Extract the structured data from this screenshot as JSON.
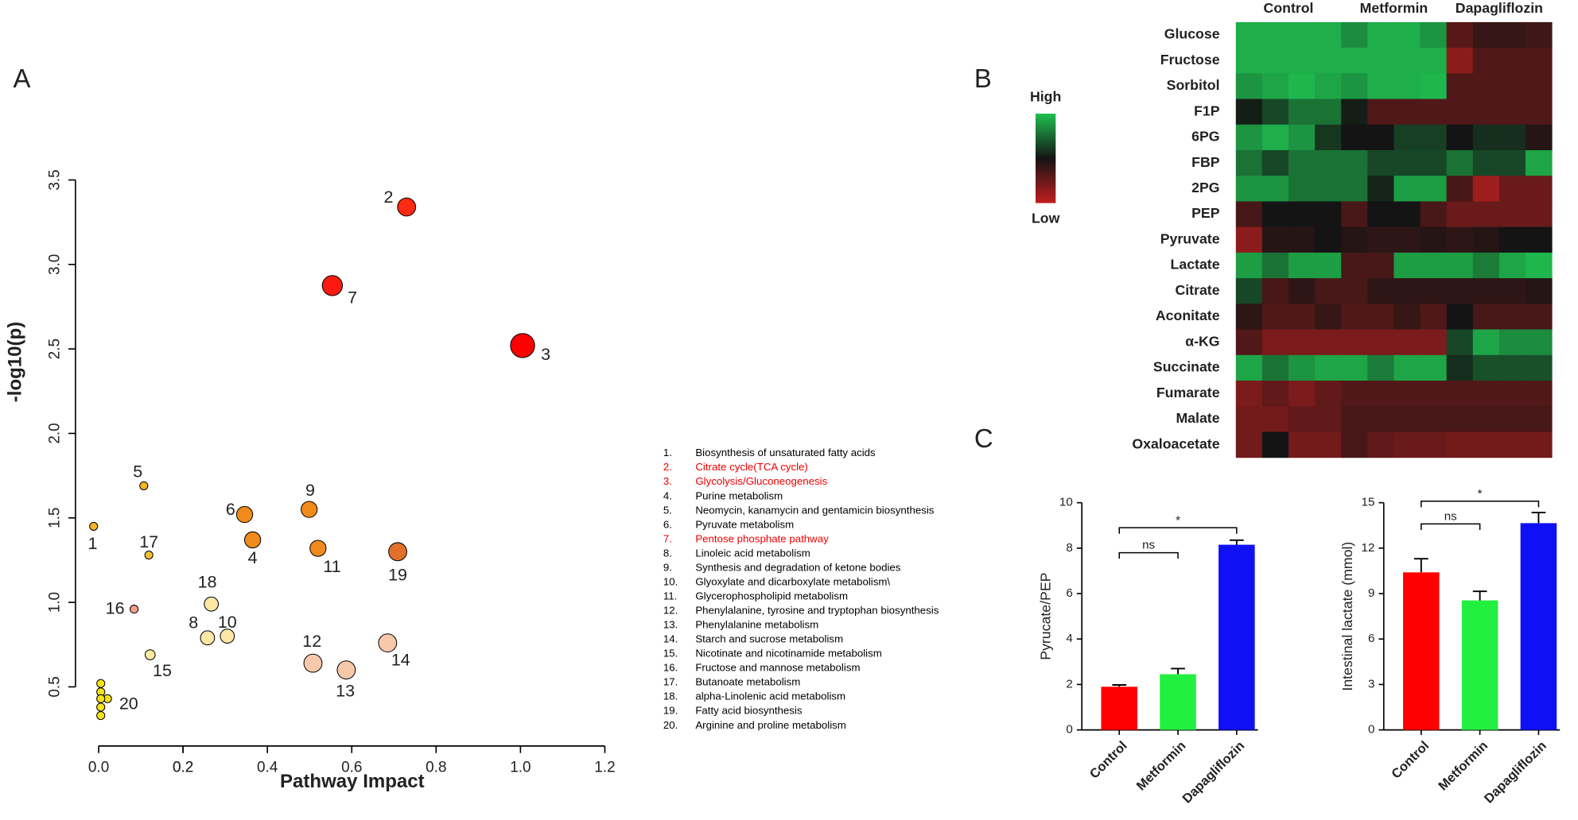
{
  "chart_data": [
    {
      "type": "scatter",
      "panel": "A",
      "xlabel": "Pathway Impact",
      "ylabel": "-log10(p)",
      "xlim": [
        -0.055,
        1.2
      ],
      "ylim": [
        0.15,
        3.5
      ],
      "xticks": [
        {
          "value": 0,
          "label": "0.0"
        },
        0.2,
        0.4,
        0.6,
        0.8,
        {
          "value": 1,
          "label": "1.0"
        },
        0.2,
        1.2
      ],
      "yticks": [
        0.5,
        {
          "value": 1,
          "label": "1.0"
        },
        1.5,
        {
          "value": 2,
          "label": "2.0"
        },
        2.5,
        {
          "value": 3,
          "label": "3.0"
        },
        3.5
      ],
      "labels": [
        "1",
        "2",
        "3",
        "4",
        "5",
        "6",
        "7",
        "8",
        "9",
        "10",
        "11",
        "12",
        "13",
        "14",
        "15",
        "16",
        "17",
        "18",
        "19",
        "20",
        null,
        null,
        null,
        null,
        null
      ],
      "x": [
        -0.012,
        0.73,
        1.005,
        0.365,
        0.107,
        0.346,
        0.554,
        0.258,
        0.499,
        0.305,
        0.52,
        0.508,
        0.587,
        0.685,
        0.122,
        0.084,
        0.119,
        0.267,
        0.709,
        0.021,
        0.005,
        0.005,
        0.005,
        0.005,
        0.005
      ],
      "y": [
        1.45,
        3.34,
        2.52,
        1.37,
        1.69,
        1.52,
        2.875,
        0.79,
        1.55,
        0.8,
        1.32,
        0.64,
        0.6,
        0.76,
        0.69,
        0.96,
        1.28,
        0.99,
        1.3,
        0.43,
        0.52,
        0.47,
        0.43,
        0.38,
        0.33
      ],
      "sizes": [
        4,
        9,
        12,
        8,
        4,
        8,
        10,
        7,
        8,
        7,
        8,
        9,
        9,
        9,
        5,
        4,
        4,
        7,
        9,
        4,
        4,
        4,
        4,
        4,
        4
      ],
      "colors": [
        "#f5b525",
        "#fb2a10",
        "#ff0000",
        "#f08a1a",
        "#f5b525",
        "#f08a1a",
        "#fb1a10",
        "#fde7a6",
        "#f08a1a",
        "#fde7a6",
        "#f08a1a",
        "#f8c8aa",
        "#f8c8aa",
        "#f8c8aa",
        "#fdeba0",
        "#f4a08a",
        "#f5c030",
        "#fde7a6",
        "#e2702a",
        "#f7e21a",
        "#f7e21a",
        "#f7e21a",
        "#f7e21a",
        "#f7e21a",
        "#f7e21a"
      ],
      "pathway_numbers": [
        "1.",
        "2.",
        "3.",
        "4.",
        "5.",
        "6.",
        "7.",
        "8.",
        "9.",
        "10.",
        "11.",
        "12.",
        "13.",
        "14.",
        "15.",
        "16.",
        "17.",
        "18.",
        "19.",
        "20."
      ],
      "pathway_names": [
        "Biosynthesis of unsaturated fatty acids",
        "Citrate cycle(TCA cycle)",
        "Glycolysis/Gluconeogenesis",
        "Purine metabolism",
        "Neomycin, kanamycin and gentamicin biosynthesis",
        "Pyruvate metabolism",
        "Pentose phosphate pathway",
        "Linoleic acid metabolism",
        "Synthesis and degradation of ketone bodies",
        "Glyoxylate and dicarboxylate metabolism\\",
        "Glycerophospholipid metabolism",
        "Phenylalanine, tyrosine and tryptophan biosynthesis",
        "Phenylalanine metabolism",
        "Starch and sucrose metabolism",
        "Nicotinate and nicotinamide metabolism",
        "Fructose and mannose metabolism",
        "Butanoate metabolism",
        "alpha-Linolenic acid metabolism",
        "Fatty acid biosynthesis",
        "Arginine and proline metabolism"
      ],
      "pathway_colors": [
        "#000",
        "#e00",
        "#e00",
        "#000",
        "#000",
        "#000",
        "#e00",
        "#000",
        "#000",
        "#000",
        "#000",
        "#000",
        "#000",
        "#000",
        "#000",
        "#000",
        "#000",
        "#000",
        "#000",
        "#000"
      ]
    },
    {
      "type": "heatmap",
      "panel": "B",
      "legend_high": "High",
      "legend_low": "Low",
      "colors": {
        "low": "#c01f1f",
        "mid": "#141414",
        "high": "#1fbf50"
      },
      "clim": [
        -1,
        1
      ],
      "groups": [
        "Control",
        "Metformin",
        "Dapagliflozin"
      ],
      "rows": [
        "Glucose",
        "Fructose",
        "Sorbitol",
        "F1P",
        "6PG",
        "FBP",
        "2PG",
        "PEP",
        "Pyruvate",
        "Lactate",
        "Citrate",
        "Aconitate",
        "α-KG",
        "Succinate",
        "Fumarate",
        "Malate",
        "Oxaloacetate"
      ],
      "values": [
        [
          [
            0.9,
            0.9,
            0.9,
            0.9
          ],
          [
            0.7,
            0.9,
            0.9,
            0.75
          ],
          [
            -0.4,
            -0.2,
            -0.2,
            -0.25
          ]
        ],
        [
          [
            0.9,
            0.9,
            0.9,
            0.9
          ],
          [
            0.9,
            0.9,
            0.9,
            0.9
          ],
          [
            -0.7,
            -0.35,
            -0.35,
            -0.35
          ]
        ],
        [
          [
            0.75,
            0.85,
            0.95,
            0.85
          ],
          [
            0.75,
            0.9,
            0.9,
            0.95
          ],
          [
            -0.35,
            -0.35,
            -0.35,
            -0.35
          ]
        ],
        [
          [
            0.05,
            0.3,
            0.55,
            0.55
          ],
          [
            0.05,
            -0.35,
            -0.35,
            -0.35
          ],
          [
            -0.35,
            -0.35,
            -0.35,
            -0.35
          ]
        ],
        [
          [
            0.75,
            0.9,
            0.75,
            0.2
          ],
          [
            0,
            0,
            0.25,
            0.25
          ],
          [
            0,
            0.15,
            0.15,
            -0.1
          ]
        ],
        [
          [
            0.55,
            0.3,
            0.55,
            0.55
          ],
          [
            0.55,
            0.3,
            0.3,
            0.3
          ],
          [
            0.55,
            0.3,
            0.3,
            0.85
          ]
        ],
        [
          [
            0.75,
            0.75,
            0.55,
            0.55
          ],
          [
            0.55,
            0.1,
            0.8,
            0.8
          ],
          [
            -0.3,
            -0.8,
            -0.5,
            -0.5
          ]
        ],
        [
          [
            -0.3,
            0,
            0,
            0
          ],
          [
            -0.3,
            0,
            0,
            -0.3
          ],
          [
            -0.5,
            -0.5,
            -0.5,
            -0.5
          ]
        ],
        [
          [
            -0.7,
            -0.1,
            -0.1,
            0
          ],
          [
            -0.1,
            -0.15,
            -0.15,
            -0.1
          ],
          [
            -0.15,
            -0.1,
            0,
            0
          ]
        ],
        [
          [
            0.8,
            0.55,
            0.8,
            0.8
          ],
          [
            -0.3,
            -0.3,
            0.8,
            0.8
          ],
          [
            0.8,
            0.6,
            0.85,
            0.95
          ]
        ],
        [
          [
            0.3,
            -0.3,
            -0.15,
            -0.3
          ],
          [
            -0.3,
            -0.15,
            -0.15,
            -0.15
          ],
          [
            -0.15,
            -0.15,
            -0.15,
            -0.1
          ]
        ],
        [
          [
            -0.15,
            -0.35,
            -0.35,
            -0.2
          ],
          [
            -0.35,
            -0.35,
            -0.2,
            -0.35
          ],
          [
            0,
            -0.3,
            -0.3,
            -0.3
          ]
        ],
        [
          [
            -0.35,
            -0.6,
            -0.6,
            -0.6
          ],
          [
            -0.6,
            -0.6,
            -0.6,
            -0.6
          ],
          [
            0.3,
            0.85,
            0.7,
            0.7
          ]
        ],
        [
          [
            0.85,
            0.55,
            0.75,
            0.85
          ],
          [
            0.85,
            0.6,
            0.85,
            0.85
          ],
          [
            0.15,
            0.35,
            0.35,
            0.35
          ]
        ],
        [
          [
            -0.6,
            -0.45,
            -0.6,
            -0.45
          ],
          [
            -0.35,
            -0.35,
            -0.35,
            -0.35
          ],
          [
            -0.35,
            -0.35,
            -0.35,
            -0.35
          ]
        ],
        [
          [
            -0.55,
            -0.55,
            -0.45,
            -0.45
          ],
          [
            -0.3,
            -0.3,
            -0.3,
            -0.3
          ],
          [
            -0.3,
            -0.3,
            -0.3,
            -0.3
          ]
        ],
        [
          [
            -0.55,
            0,
            -0.55,
            -0.55
          ],
          [
            -0.3,
            -0.45,
            -0.5,
            -0.5
          ],
          [
            -0.55,
            -0.55,
            -0.55,
            -0.55
          ]
        ]
      ]
    },
    {
      "type": "bar",
      "panel": "C",
      "ylabel": "Pyrucate/PEP",
      "categories": [
        "Control",
        "Metformin",
        "Dapagliflozin"
      ],
      "values": [
        1.9,
        2.45,
        8.15
      ],
      "errors": [
        0.08,
        0.25,
        0.2
      ],
      "colors": [
        "#ff0000",
        "#22f040",
        "#1010f5"
      ],
      "ylim": [
        0,
        10
      ],
      "yticks": [
        0,
        2,
        4,
        6,
        8,
        10
      ],
      "brackets": [
        {
          "from": "Control",
          "to": "Metformin",
          "y": 7.8,
          "label": "ns"
        },
        {
          "from": "Control",
          "to": "Dapagliflozin",
          "y": 8.9,
          "label": "*"
        }
      ]
    },
    {
      "type": "bar",
      "ylabel": "Intestinal lactate (mmol)",
      "categories": [
        "Control",
        "Metformin",
        "Dapagliflozin"
      ],
      "values": [
        10.4,
        8.55,
        13.65
      ],
      "errors": [
        0.9,
        0.6,
        0.7
      ],
      "colors": [
        "#ff0000",
        "#22f040",
        "#1010f5"
      ],
      "ylim": [
        0,
        15
      ],
      "yticks": [
        0,
        3,
        6,
        9,
        12,
        15
      ],
      "brackets": [
        {
          "from": "Control",
          "to": "Metformin",
          "y": 13.6,
          "label": "ns"
        },
        {
          "from": "Control",
          "to": "Dapagliflozin",
          "y": 15.1,
          "label": "*"
        }
      ]
    }
  ]
}
